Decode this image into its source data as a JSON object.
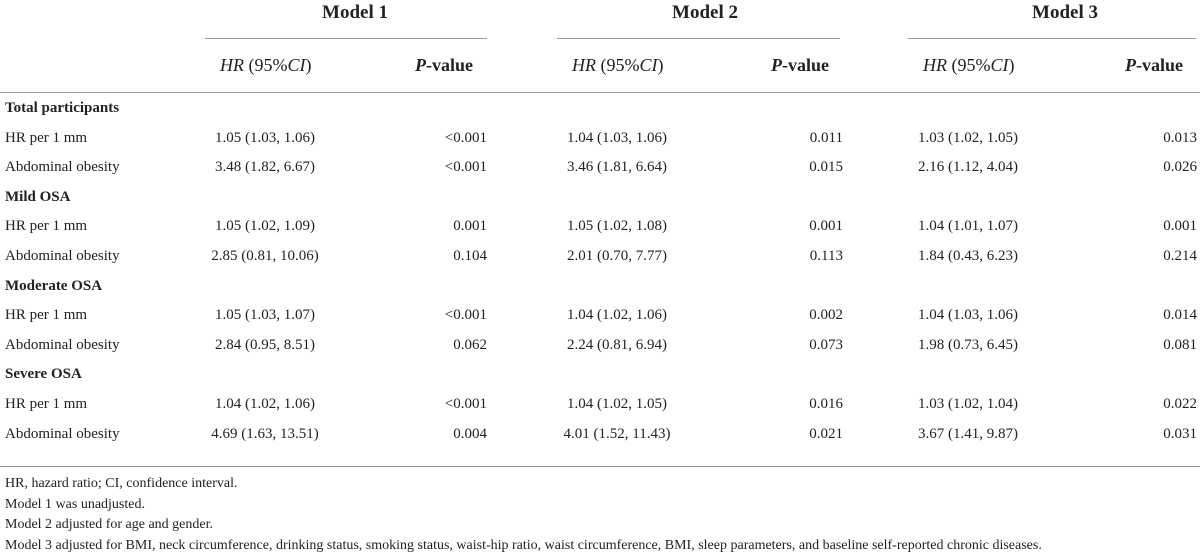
{
  "models": [
    "Model 1",
    "Model 2",
    "Model 3"
  ],
  "subheaders": {
    "hr_italic": "HR",
    "hr_plain": " (95%",
    "ci_italic": "CI",
    "close": ")",
    "p_italic": "P",
    "p_rest": "-value"
  },
  "sections": [
    {
      "label": "Total participants",
      "rows": [
        {
          "label": "HR per 1 mm",
          "values": [
            "1.05 (1.03, 1.06)",
            "<0.001",
            "1.04 (1.03, 1.06)",
            "0.011",
            "1.03 (1.02, 1.05)",
            "0.013"
          ]
        },
        {
          "label": "Abdominal obesity",
          "values": [
            "3.48 (1.82, 6.67)",
            "<0.001",
            "3.46 (1.81, 6.64)",
            "0.015",
            "2.16 (1.12, 4.04)",
            "0.026"
          ]
        }
      ]
    },
    {
      "label": "Mild OSA",
      "rows": [
        {
          "label": "HR per 1 mm",
          "values": [
            "1.05 (1.02, 1.09)",
            "0.001",
            "1.05 (1.02, 1.08)",
            "0.001",
            "1.04 (1.01, 1.07)",
            "0.001"
          ]
        },
        {
          "label": "Abdominal obesity",
          "values": [
            "2.85 (0.81, 10.06)",
            "0.104",
            "2.01 (0.70, 7.77)",
            "0.113",
            "1.84 (0.43, 6.23)",
            "0.214"
          ]
        }
      ]
    },
    {
      "label": "Moderate OSA",
      "rows": [
        {
          "label": "HR per 1 mm",
          "values": [
            "1.05 (1.03, 1.07)",
            "<0.001",
            "1.04 (1.02, 1.06)",
            "0.002",
            "1.04 (1.03, 1.06)",
            "0.014"
          ]
        },
        {
          "label": "Abdominal obesity",
          "values": [
            "2.84 (0.95, 8.51)",
            "0.062",
            "2.24 (0.81, 6.94)",
            "0.073",
            "1.98 (0.73, 6.45)",
            "0.081"
          ]
        }
      ]
    },
    {
      "label": "Severe OSA",
      "rows": [
        {
          "label": "HR per 1 mm",
          "values": [
            "1.04 (1.02, 1.06)",
            "<0.001",
            "1.04 (1.02, 1.05)",
            "0.016",
            "1.03 (1.02, 1.04)",
            "0.022"
          ]
        },
        {
          "label": "Abdominal obesity",
          "values": [
            "4.69 (1.63, 13.51)",
            "0.004",
            "4.01 (1.52, 11.43)",
            "0.021",
            "3.67 (1.41, 9.87)",
            "0.031"
          ]
        }
      ]
    }
  ],
  "footnotes": [
    "HR, hazard ratio; CI, confidence interval.",
    "Model 1 was unadjusted.",
    "Model 2 adjusted for age and gender.",
    "Model 3 adjusted for BMI, neck circumference, drinking status, smoking status, waist-hip ratio, waist circumference, BMI, sleep parameters, and baseline self-reported chronic diseases."
  ]
}
